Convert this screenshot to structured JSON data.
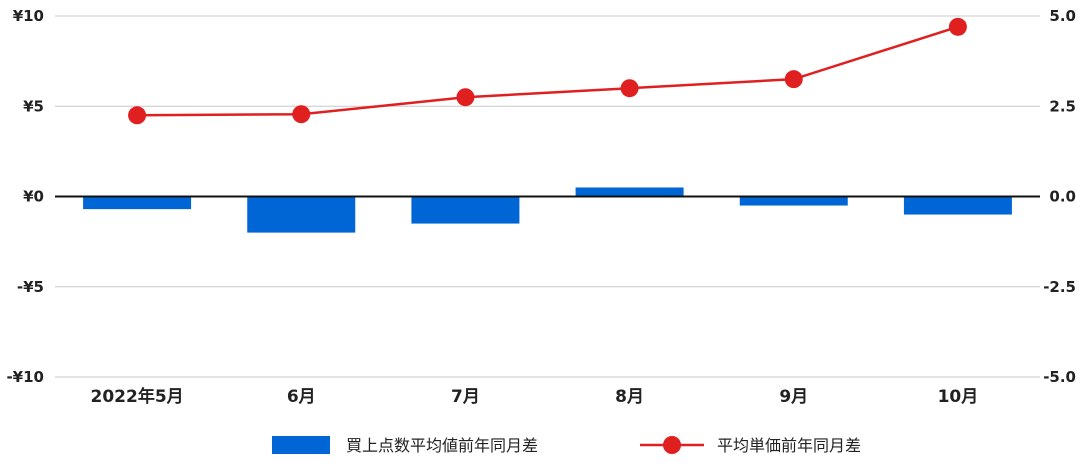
{
  "chart_data": {
    "type": "bar+line",
    "categories": [
      "2022年5月",
      "6月",
      "7月",
      "8月",
      "9月",
      "10月"
    ],
    "series": [
      {
        "name": "買上点数平均値前年同月差",
        "type": "bar",
        "axis": "left",
        "color": "#0066d6",
        "values": [
          -0.7,
          -2.0,
          -1.5,
          0.5,
          -0.5,
          -1.0
        ]
      },
      {
        "name": "平均単価前年同月差",
        "type": "line",
        "axis": "right",
        "color": "#e02020",
        "values": [
          2.25,
          2.28,
          2.75,
          3.0,
          3.25,
          4.7
        ]
      }
    ],
    "y_left": {
      "ylim": [
        -10,
        10
      ],
      "ticks": [
        10,
        5,
        0,
        -5,
        -10
      ],
      "tick_labels": [
        "¥10",
        "¥5",
        "¥0",
        "-¥5",
        "-¥10"
      ]
    },
    "y_right": {
      "ylim": [
        -5,
        5
      ],
      "ticks": [
        5,
        2.5,
        0,
        -2.5,
        -5
      ],
      "tick_labels": [
        "5.0",
        "2.5",
        "0.0",
        "-2.5",
        "-5.0"
      ]
    },
    "grid": true,
    "legend_position": "bottom"
  }
}
